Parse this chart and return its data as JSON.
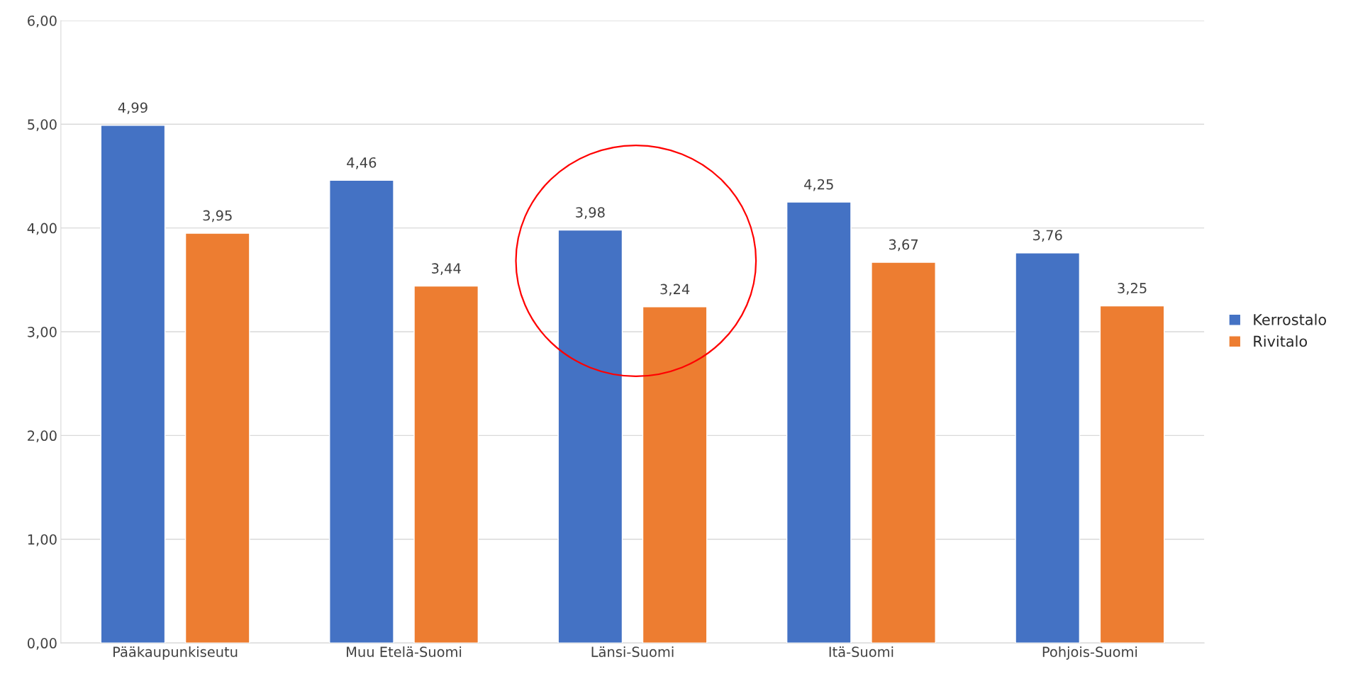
{
  "chart_data": {
    "type": "bar",
    "categories": [
      "Pääkaupunkiseutu",
      "Muu Etelä-Suomi",
      "Länsi-Suomi",
      "Itä-Suomi",
      "Pohjois-Suomi"
    ],
    "series": [
      {
        "name": "Kerrostalo",
        "color": "#4472c4",
        "values": [
          4.99,
          4.46,
          3.98,
          4.25,
          3.76
        ],
        "value_labels": [
          "4,99",
          "4,46",
          "3,98",
          "4,25",
          "3,76"
        ]
      },
      {
        "name": "Rivitalo",
        "color": "#ed7d31",
        "values": [
          3.95,
          3.44,
          3.24,
          3.67,
          3.25
        ],
        "value_labels": [
          "3,95",
          "3,44",
          "3,24",
          "3,67",
          "3,25"
        ]
      }
    ],
    "ylim": [
      0,
      6
    ],
    "yticks": [
      {
        "value": 0,
        "label": "0,00"
      },
      {
        "value": 1,
        "label": "1,00"
      },
      {
        "value": 2,
        "label": "2,00"
      },
      {
        "value": 3,
        "label": "3,00"
      },
      {
        "value": 4,
        "label": "4,00"
      },
      {
        "value": 5,
        "label": "5,00"
      },
      {
        "value": 6,
        "label": "6,00"
      }
    ],
    "grid": "y",
    "legend": "right"
  }
}
